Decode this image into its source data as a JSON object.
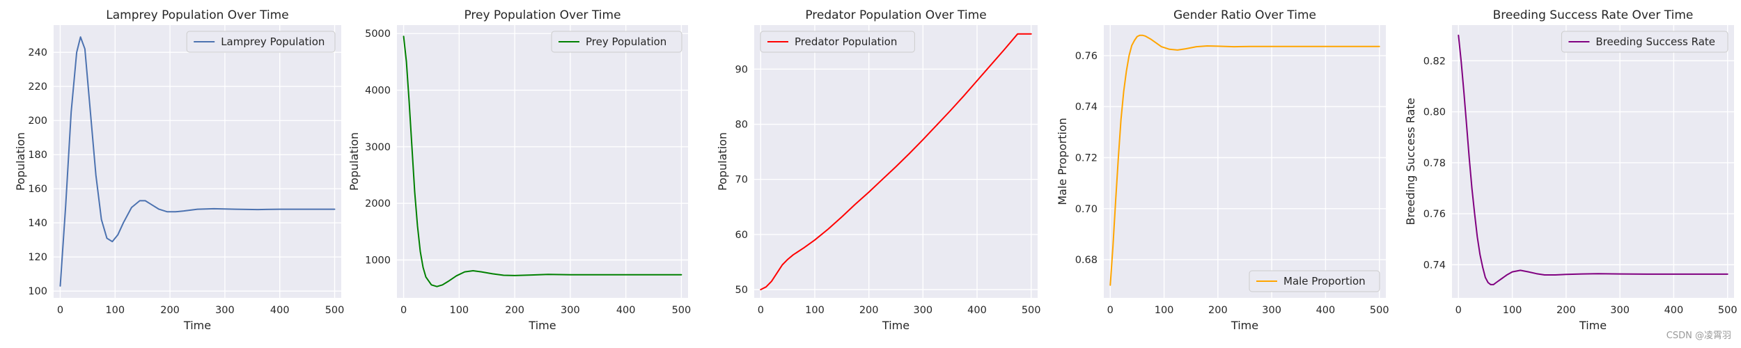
{
  "watermark": "CSDN @凌霄羽",
  "chart_data": [
    {
      "type": "line",
      "title": "Lamprey Population Over Time",
      "xlabel": "Time",
      "ylabel": "Population",
      "xlim": [
        -12,
        512
      ],
      "ylim": [
        96,
        256
      ],
      "xticks": [
        0,
        100,
        200,
        300,
        400,
        500
      ],
      "yticks": [
        100,
        120,
        140,
        160,
        180,
        200,
        220,
        240
      ],
      "legend": "top-right",
      "grid": true,
      "series": [
        {
          "name": "Lamprey Population",
          "color": "#4c72b0",
          "x": [
            0,
            10,
            20,
            30,
            37,
            45,
            55,
            65,
            75,
            85,
            95,
            105,
            115,
            130,
            145,
            155,
            165,
            180,
            195,
            210,
            225,
            250,
            280,
            320,
            360,
            400,
            450,
            500
          ],
          "y": [
            103,
            150,
            205,
            240,
            249,
            242,
            205,
            168,
            142,
            131,
            129,
            133,
            140,
            149,
            153,
            153,
            151,
            148,
            146.5,
            146.5,
            147,
            148,
            148.3,
            148,
            147.8,
            148,
            148,
            148
          ]
        }
      ]
    },
    {
      "type": "line",
      "title": "Prey Population Over Time",
      "xlabel": "Time",
      "ylabel": "Population",
      "xlim": [
        -12,
        512
      ],
      "ylim": [
        330,
        5150
      ],
      "xticks": [
        0,
        100,
        200,
        300,
        400,
        500
      ],
      "yticks": [
        1000,
        2000,
        3000,
        4000,
        5000
      ],
      "legend": "top-right",
      "grid": true,
      "series": [
        {
          "name": "Prey Population",
          "color": "#008000",
          "x": [
            0,
            5,
            10,
            15,
            20,
            25,
            30,
            35,
            40,
            50,
            60,
            70,
            80,
            95,
            110,
            125,
            140,
            160,
            180,
            200,
            230,
            260,
            300,
            350,
            400,
            450,
            500
          ],
          "y": [
            4950,
            4500,
            3800,
            3000,
            2200,
            1600,
            1150,
            870,
            700,
            560,
            530,
            560,
            620,
            720,
            790,
            810,
            790,
            755,
            730,
            725,
            735,
            745,
            740,
            738,
            738,
            738,
            738
          ]
        }
      ]
    },
    {
      "type": "line",
      "title": "Predator Population Over Time",
      "xlabel": "Time",
      "ylabel": "Population",
      "xlim": [
        -12,
        512
      ],
      "ylim": [
        48.5,
        98
      ],
      "xticks": [
        0,
        100,
        200,
        300,
        400,
        500
      ],
      "yticks": [
        50,
        60,
        70,
        80,
        90
      ],
      "legend": "top-left",
      "grid": true,
      "series": [
        {
          "name": "Predator Population",
          "color": "#ff0000",
          "x": [
            0,
            10,
            20,
            30,
            40,
            50,
            60,
            80,
            100,
            125,
            150,
            175,
            200,
            225,
            250,
            275,
            300,
            325,
            350,
            375,
            400,
            425,
            450,
            475,
            500
          ],
          "y": [
            50,
            50.5,
            51.5,
            53,
            54.5,
            55.5,
            56.3,
            57.6,
            59,
            61,
            63.2,
            65.5,
            67.7,
            70,
            72.3,
            74.7,
            77.2,
            79.8,
            82.4,
            85.1,
            87.9,
            90.7,
            93.5,
            96.4,
            96.4
          ]
        }
      ]
    },
    {
      "type": "line",
      "title": "Gender Ratio Over Time",
      "xlabel": "Time",
      "ylabel": "Male Proportion",
      "xlim": [
        -12,
        512
      ],
      "ylim": [
        0.665,
        0.772
      ],
      "xticks": [
        0,
        100,
        200,
        300,
        400,
        500
      ],
      "yticks": [
        0.68,
        0.7,
        0.72,
        0.74,
        0.76
      ],
      "legend": "bottom-right",
      "grid": true,
      "series": [
        {
          "name": "Male Proportion",
          "color": "#ffa500",
          "x": [
            0,
            5,
            10,
            15,
            20,
            25,
            30,
            35,
            40,
            45,
            50,
            55,
            60,
            65,
            75,
            85,
            95,
            110,
            125,
            140,
            160,
            180,
            200,
            230,
            260,
            300,
            350,
            400,
            450,
            500
          ],
          "y": [
            0.67,
            0.685,
            0.703,
            0.72,
            0.735,
            0.746,
            0.754,
            0.76,
            0.764,
            0.766,
            0.7675,
            0.768,
            0.768,
            0.7677,
            0.7665,
            0.765,
            0.7635,
            0.7625,
            0.7622,
            0.7627,
            0.7635,
            0.7638,
            0.7637,
            0.7635,
            0.7636,
            0.7636,
            0.7636,
            0.7636,
            0.7636,
            0.7636
          ]
        }
      ]
    },
    {
      "type": "line",
      "title": "Breeding Success Rate Over Time",
      "xlabel": "Time",
      "ylabel": "Breeding Success Rate",
      "xlim": [
        -12,
        512
      ],
      "ylim": [
        0.727,
        0.834
      ],
      "xticks": [
        0,
        100,
        200,
        300,
        400,
        500
      ],
      "yticks": [
        0.74,
        0.76,
        0.78,
        0.8,
        0.82
      ],
      "legend": "top-right",
      "grid": true,
      "series": [
        {
          "name": "Breeding Success Rate",
          "color": "#800080",
          "x": [
            0,
            5,
            10,
            15,
            20,
            25,
            30,
            35,
            40,
            45,
            50,
            55,
            60,
            65,
            70,
            80,
            90,
            100,
            115,
            130,
            145,
            160,
            180,
            200,
            230,
            260,
            300,
            350,
            400,
            450,
            500
          ],
          "y": [
            0.83,
            0.82,
            0.808,
            0.795,
            0.782,
            0.77,
            0.76,
            0.751,
            0.744,
            0.739,
            0.735,
            0.733,
            0.7322,
            0.7322,
            0.733,
            0.7345,
            0.736,
            0.7372,
            0.7378,
            0.7372,
            0.7365,
            0.736,
            0.736,
            0.7362,
            0.7364,
            0.7365,
            0.7364,
            0.7363,
            0.7363,
            0.7363,
            0.7363
          ]
        }
      ]
    }
  ]
}
